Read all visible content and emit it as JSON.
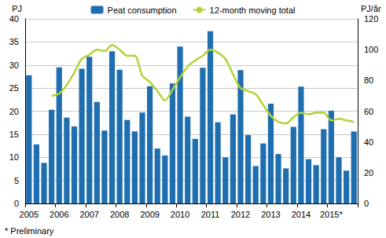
{
  "chart_data": {
    "type": "bar",
    "y_label": "PJ",
    "y2_label": "PJ/år",
    "annotation": "* Preliminary",
    "categories": [
      "2005",
      null,
      null,
      null,
      "2006",
      null,
      null,
      null,
      "2007",
      null,
      null,
      null,
      "2008",
      null,
      null,
      null,
      "2009",
      null,
      null,
      null,
      "2010",
      null,
      null,
      null,
      "2011",
      null,
      null,
      null,
      "2012",
      null,
      null,
      null,
      "2013",
      null,
      null,
      null,
      "2014",
      null,
      null,
      null,
      "2015*",
      null,
      null,
      null
    ],
    "series": [
      {
        "name": "Peat consumption",
        "type": "bar",
        "color": "#1f6fb0",
        "values": [
          27.8,
          12.8,
          8.8,
          20.3,
          29.5,
          18.6,
          16.7,
          29.2,
          31.8,
          22.0,
          15.8,
          33.0,
          29.0,
          18.1,
          15.6,
          19.7,
          25.4,
          11.9,
          10.4,
          26.0,
          34.0,
          18.8,
          14.0,
          29.4,
          37.3,
          17.6,
          10.0,
          19.3,
          28.9,
          14.8,
          8.1,
          13.0,
          21.6,
          10.7,
          7.6,
          16.6,
          25.3,
          9.6,
          8.3,
          16.1,
          20.1,
          10.0,
          7.1,
          15.6
        ]
      },
      {
        "name": "12-month moving total",
        "type": "line",
        "axis": "y2",
        "color": "#b4d335",
        "values": [
          null,
          null,
          null,
          70,
          71.5,
          77,
          85,
          94,
          96.7,
          100,
          99,
          103,
          100,
          96,
          96,
          83,
          79,
          73,
          67,
          74,
          82,
          89,
          93,
          96,
          100,
          98,
          94,
          84,
          75,
          73,
          71,
          64,
          57,
          53,
          52,
          56,
          59,
          58,
          59,
          59,
          54,
          55,
          54,
          53
        ]
      }
    ],
    "ylim": [
      0,
      40
    ],
    "yticks": [
      0,
      5,
      10,
      15,
      20,
      25,
      30,
      35,
      40
    ],
    "y2lim": [
      0,
      120
    ],
    "y2ticks": [
      0,
      20,
      40,
      60,
      80,
      100,
      120
    ],
    "grid": true,
    "legend": "top"
  }
}
